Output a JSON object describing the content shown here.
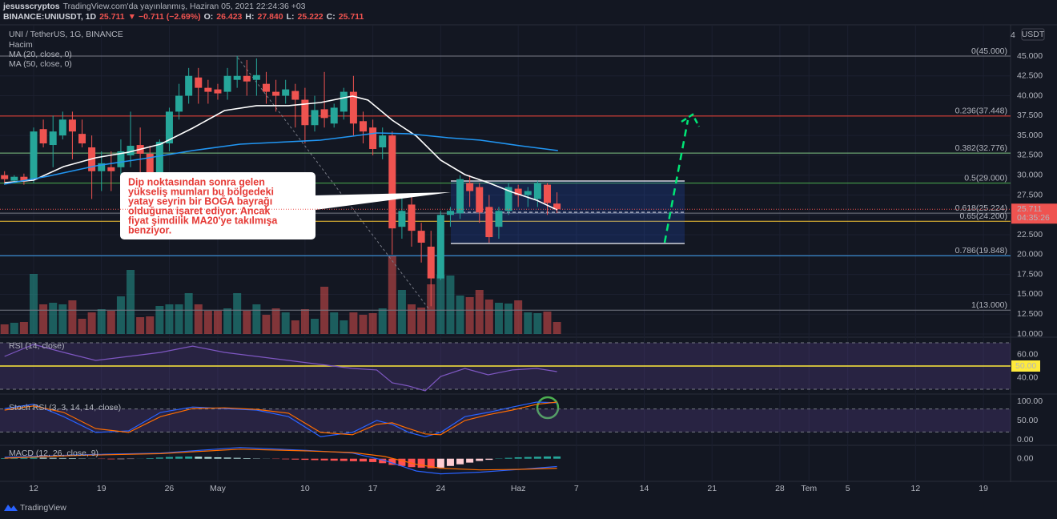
{
  "header": {
    "user": "jesusscryptos",
    "published": "TradingView.com'da yayınlanmış, Haziran 05, 2021 22:24:36 +03",
    "quote": [
      {
        "text": "BINANCE:UNIUSDT, 1D",
        "color": "#d1d4dc"
      },
      {
        "text": "25.711",
        "color": "#ef5350"
      },
      {
        "text": "▼ −0.711 (−2.69%)",
        "color": "#ef5350"
      },
      {
        "text": "O:",
        "color": "#d1d4dc"
      },
      {
        "text": "26.423",
        "color": "#ef5350"
      },
      {
        "text": "H:",
        "color": "#d1d4dc"
      },
      {
        "text": "27.840",
        "color": "#ef5350"
      },
      {
        "text": "L:",
        "color": "#d1d4dc"
      },
      {
        "text": "25.222",
        "color": "#ef5350"
      },
      {
        "text": "C:",
        "color": "#d1d4dc"
      },
      {
        "text": "25.711",
        "color": "#ef5350"
      }
    ]
  },
  "footer": {
    "brand": "TradingView"
  },
  "chart_data": {
    "type": "candlestick",
    "title": "UNI / TetherUS, 1G, BINANCE",
    "currency": "USDT",
    "scale_button": "4",
    "up_color": "#26a69a",
    "down_color": "#ef5350",
    "grid": true,
    "xlim": [
      -3.47,
      100.8
    ],
    "xticks": [
      {
        "value": 0,
        "label": "12"
      },
      {
        "value": 7,
        "label": "19"
      },
      {
        "value": 14,
        "label": "26"
      },
      {
        "value": 19,
        "label": "May"
      },
      {
        "value": 28,
        "label": "10"
      },
      {
        "value": 35,
        "label": "17"
      },
      {
        "value": 42,
        "label": "24"
      },
      {
        "value": 50,
        "label": "Haz"
      },
      {
        "value": 56,
        "label": "7"
      },
      {
        "value": 63,
        "label": "14"
      },
      {
        "value": 70,
        "label": "21"
      },
      {
        "value": 77,
        "label": "28"
      },
      {
        "value": 80,
        "label": "Tem"
      },
      {
        "value": 84,
        "label": "5"
      },
      {
        "value": 91,
        "label": "12"
      },
      {
        "value": 98,
        "label": "19"
      }
    ],
    "ylim": [
      9.7,
      48.83
    ],
    "yticks": [
      {
        "value": 45,
        "label": "45.000"
      },
      {
        "value": 42.5,
        "label": "42.500"
      },
      {
        "value": 40,
        "label": "40.000"
      },
      {
        "value": 37.5,
        "label": "37.500"
      },
      {
        "value": 35,
        "label": "35.000"
      },
      {
        "value": 32.5,
        "label": "32.500"
      },
      {
        "value": 30,
        "label": "30.000"
      },
      {
        "value": 27.5,
        "label": "27.500"
      },
      {
        "value": 25,
        "label": "25.000"
      },
      {
        "value": 22.5,
        "label": "22.500"
      },
      {
        "value": 20,
        "label": "20.000"
      },
      {
        "value": 17.5,
        "label": "17.500"
      },
      {
        "value": 15,
        "label": "15.000"
      },
      {
        "value": 12.5,
        "label": "12.500"
      },
      {
        "value": 10,
        "label": "10.000"
      }
    ],
    "x": [
      -3,
      -2,
      -1,
      0,
      1,
      2,
      3,
      4,
      5,
      6,
      7,
      8,
      9,
      10,
      11,
      12,
      13,
      14,
      15,
      16,
      17,
      18,
      19,
      20,
      21,
      22,
      23,
      24,
      25,
      26,
      27,
      28,
      29,
      30,
      31,
      32,
      33,
      34,
      35,
      36,
      37,
      38,
      39,
      40,
      41,
      42,
      43,
      44,
      45,
      46,
      47,
      48,
      49,
      50,
      51,
      52,
      53,
      54
    ],
    "candles": [
      [
        30,
        30.5,
        29,
        29.5
      ],
      [
        29.3,
        30,
        29,
        29.8
      ],
      [
        29.8,
        30.2,
        28.8,
        29.2
      ],
      [
        29.5,
        36,
        29,
        35.5
      ],
      [
        35.8,
        37,
        33.5,
        34
      ],
      [
        33.8,
        37.5,
        31,
        35.5
      ],
      [
        35,
        38,
        34.5,
        37
      ],
      [
        37,
        38,
        32,
        35.5
      ],
      [
        35.2,
        37,
        33.5,
        34
      ],
      [
        33.5,
        35,
        27,
        30.5
      ],
      [
        30.5,
        33,
        28,
        31.5
      ],
      [
        31,
        33,
        28,
        30.5
      ],
      [
        31,
        34.5,
        30,
        33
      ],
      [
        32.5,
        38,
        31,
        33.7
      ],
      [
        33.8,
        36,
        30,
        32.7
      ],
      [
        32.7,
        33.7,
        29,
        30.2
      ],
      [
        30.3,
        34.5,
        29.5,
        34.2
      ],
      [
        34,
        38.5,
        33,
        38
      ],
      [
        38,
        41.5,
        37,
        40
      ],
      [
        40,
        43.5,
        39,
        42.5
      ],
      [
        42.3,
        43.5,
        39,
        41
      ],
      [
        41,
        42,
        39,
        40.5
      ],
      [
        40.8,
        41.5,
        39.5,
        40.3
      ],
      [
        40.5,
        43.5,
        39.5,
        42.5
      ],
      [
        42,
        45,
        41,
        42.5
      ],
      [
        42.5,
        44.5,
        40,
        41.8
      ],
      [
        42,
        44.7,
        40,
        42.6
      ],
      [
        41.5,
        43,
        39,
        40.5
      ],
      [
        40.5,
        42,
        38,
        40
      ],
      [
        40,
        42,
        39,
        40.8
      ],
      [
        40.6,
        41.5,
        36,
        39.5
      ],
      [
        39.5,
        41,
        34,
        36.3
      ],
      [
        36.3,
        40,
        35.5,
        38.2
      ],
      [
        38.3,
        43,
        36,
        37.2
      ],
      [
        36.5,
        39,
        36,
        38.5
      ],
      [
        38,
        41,
        37,
        40.5
      ],
      [
        40.5,
        42.5,
        35,
        36.5
      ],
      [
        36.8,
        38,
        34,
        35.5
      ],
      [
        36,
        37,
        32.5,
        33.3
      ],
      [
        33.5,
        36,
        32,
        35
      ],
      [
        35,
        35.5,
        20,
        23.3
      ],
      [
        23.5,
        27.5,
        22,
        25.5
      ],
      [
        26.3,
        27.5,
        21,
        23
      ],
      [
        23,
        24,
        19,
        21.5
      ],
      [
        21,
        23,
        13.5,
        17
      ],
      [
        17,
        25.5,
        16.8,
        25
      ],
      [
        25,
        26,
        23.5,
        25.5
      ],
      [
        25.2,
        30,
        24.5,
        29.5
      ],
      [
        29,
        30,
        26,
        28
      ],
      [
        28.5,
        29,
        24,
        25.3
      ],
      [
        26,
        27.5,
        21.5,
        22.2
      ],
      [
        23.5,
        26,
        22,
        25.5
      ],
      [
        25.5,
        29,
        25,
        28.5
      ],
      [
        28.3,
        28.8,
        26,
        27.5
      ],
      [
        27.5,
        28.5,
        26,
        28
      ],
      [
        27,
        29.3,
        26,
        29
      ],
      [
        28.8,
        29,
        25,
        26.5
      ],
      [
        26.423,
        27.84,
        25.222,
        25.711
      ]
    ],
    "volume": {
      "name": "Hacim",
      "vlim": [
        0,
        100
      ],
      "values": [
        12,
        14,
        15,
        75,
        37,
        39,
        37,
        42,
        19,
        27,
        31,
        29,
        47,
        80,
        21,
        22,
        35,
        37,
        37,
        51,
        37,
        29,
        29,
        32,
        51,
        29,
        37,
        24,
        32,
        27,
        17,
        31,
        19,
        59,
        27,
        17,
        27,
        24,
        26,
        32,
        97,
        55,
        37,
        33,
        62,
        74,
        73,
        48,
        46,
        55,
        43,
        39,
        38,
        42,
        27,
        26,
        28,
        15
      ]
    },
    "ma": [
      {
        "name": "MA (20, close, 0)",
        "color": "#ffffff",
        "x": [
          -3,
          0,
          3.1,
          6.4,
          9.8,
          13.1,
          16.4,
          19.7,
          23,
          26.3,
          29.6,
          32.9,
          34.5,
          37,
          39.5,
          42,
          44.5,
          46.9,
          49.4,
          51.9,
          54
        ],
        "values": [
          29.06,
          29.37,
          31.08,
          32.19,
          32.9,
          33.9,
          35.92,
          38.14,
          38.75,
          38.75,
          39.15,
          39.96,
          39.45,
          36.93,
          34.91,
          31.89,
          30.07,
          29.06,
          27.85,
          26.84,
          25.63
        ]
      },
      {
        "name": "MA (50, close, 0)",
        "color": "#2196f3",
        "x": [
          -3.06,
          1.49,
          6.45,
          11.4,
          16.4,
          21.3,
          26.3,
          29.6,
          32.9,
          35.4,
          38.7,
          42.8,
          46.1,
          50.2,
          54.1
        ],
        "values": [
          28.86,
          29.87,
          31.18,
          32.09,
          33.1,
          33.9,
          34.21,
          34.41,
          34.91,
          35.32,
          35.22,
          34.71,
          34.41,
          33.7,
          33.1
        ]
      }
    ],
    "last_price": {
      "value": 25.711,
      "label": "25.711",
      "countdown": "04:35:26",
      "color": "#ef5350"
    },
    "fib": [
      {
        "value": 45,
        "label": "0(45.000)",
        "color": "#787b86"
      },
      {
        "value": 37.448,
        "label": "0.236(37.448)",
        "color": "#f44336"
      },
      {
        "value": 32.776,
        "label": "0.382(32.776)",
        "color": "#81c784"
      },
      {
        "value": 29,
        "label": "0.5(29.000)",
        "color": "#4caf50"
      },
      {
        "value": 25.224,
        "label": "0.618(25.224)",
        "color": "#787b86"
      },
      {
        "value": 24.2,
        "label": "0.65(24.200)",
        "color": "#f7c534"
      },
      {
        "value": 19.848,
        "label": "0.786(19.848)",
        "color": "#42a5f5"
      },
      {
        "value": 13,
        "label": "1(13.000)",
        "color": "#787b86"
      }
    ],
    "annotation": {
      "lines": [
        "Dip noktasından sonra gelen",
        "yükseliş mumları bu bölgedeki",
        "yatay seyrin bir BOĞA bayrağı",
        "olduğuna işaret ediyor. Ancak",
        "fiyat şimdilik MA20'ye takılmışa",
        "benziyor."
      ]
    },
    "rsi": {
      "title": "RSI (14, close)",
      "ylim": [
        27.24,
        72.07
      ],
      "yticks": [
        {
          "value": 60,
          "label": "60.00"
        },
        {
          "value": 40,
          "label": "40.00"
        }
      ],
      "bands": [
        70,
        30
      ],
      "midline": {
        "value": 50,
        "label": "50.00",
        "color": "#ffeb3b"
      },
      "series": [
        {
          "color": "#7e57c2",
          "x": [
            -3,
            0,
            3.1,
            6.4,
            9.8,
            13.1,
            16.4,
            19.7,
            23,
            26.3,
            29.6,
            32.9,
            35.4,
            37,
            38.7,
            40.4,
            42,
            44.5,
            46.9,
            49.4,
            51.9,
            54
          ],
          "values": [
            58.3,
            68.6,
            61.7,
            54.8,
            58.3,
            61.7,
            67.2,
            61.7,
            58.3,
            54.8,
            51.4,
            47.9,
            46.6,
            35.5,
            32.8,
            28.6,
            41,
            47.9,
            42.4,
            46.6,
            47.9,
            45.2
          ]
        }
      ]
    },
    "stoch": {
      "title": "Stoch RSI (3, 3, 14, 14, close)",
      "ylim": [
        -12.5,
        112.5
      ],
      "yticks": [
        {
          "value": 100,
          "label": "100.00"
        },
        {
          "value": 50,
          "label": "50.00"
        },
        {
          "value": 0,
          "label": "0.00"
        }
      ],
      "bands": [
        80,
        20
      ],
      "series": [
        {
          "color": "#2962ff",
          "x": [
            -3,
            0,
            3.1,
            6.4,
            9.8,
            13.1,
            16.4,
            19.7,
            23,
            26.3,
            29.6,
            32.9,
            35.4,
            37,
            38.7,
            40.4,
            42,
            44.5,
            46.9,
            49.4,
            51.9,
            54
          ],
          "values": [
            81,
            92,
            60,
            19,
            23,
            71,
            85,
            81,
            77,
            60,
            8,
            19,
            50,
            40,
            19,
            8,
            19,
            60,
            71,
            85,
            98,
            96
          ]
        },
        {
          "color": "#ff6d00",
          "x": [
            -3,
            0,
            3.1,
            6.4,
            9.8,
            13.1,
            16.4,
            19.7,
            23,
            26.3,
            29.6,
            32.9,
            35.4,
            37,
            38.7,
            40.4,
            42,
            44.5,
            46.9,
            49.4,
            51.9,
            54
          ],
          "values": [
            77,
            88,
            71,
            29,
            19,
            60,
            81,
            83,
            79,
            69,
            19,
            13,
            40,
            44,
            29,
            15,
            13,
            50,
            65,
            77,
            92,
            98
          ]
        }
      ]
    },
    "macd": {
      "title": "MACD (12, 26, close, 9)",
      "ylim": [
        -3.9,
        2.1
      ],
      "yticks": [
        {
          "value": 0,
          "label": "0.00"
        }
      ],
      "histogram": [
        0.1,
        0.12,
        0.15,
        0.2,
        0.18,
        0.15,
        0.12,
        0.1,
        0.05,
        0.02,
        -0.05,
        -0.1,
        -0.08,
        -0.05,
        0.02,
        0.1,
        0.2,
        0.3,
        0.35,
        0.38,
        0.35,
        0.3,
        0.25,
        0.2,
        0.15,
        0.1,
        0.05,
        0.02,
        -0.05,
        -0.1,
        -0.15,
        -0.2,
        -0.25,
        -0.3,
        -0.35,
        -0.4,
        -0.45,
        -0.5,
        -0.6,
        -0.8,
        -1.1,
        -1.3,
        -1.5,
        -1.6,
        -1.7,
        -1.6,
        -1.3,
        -1.0,
        -0.7,
        -0.4,
        -0.2,
        0.05,
        0.15,
        0.25,
        0.3,
        0.35,
        0.4,
        0.4
      ],
      "series": [
        {
          "color": "#2962ff",
          "x": [
            -3,
            4.8,
            13.1,
            21.3,
            27.9,
            32.9,
            36.2,
            39.5,
            42,
            46.1,
            50.2,
            54
          ],
          "values": [
            0.25,
            0.7,
            1.0,
            2.0,
            1.5,
            1.0,
            -0.3,
            -2.2,
            -2.7,
            -2.4,
            -1.9,
            -1.4
          ]
        },
        {
          "color": "#ff6d00",
          "x": [
            -3,
            4.8,
            13.1,
            21.3,
            27.9,
            32.9,
            36.2,
            39.5,
            42,
            46.1,
            50.2,
            54
          ],
          "values": [
            0.1,
            0.6,
            0.9,
            1.7,
            1.4,
            1.1,
            0.4,
            -1.0,
            -1.7,
            -2.0,
            -1.9,
            -1.7
          ]
        }
      ]
    }
  }
}
